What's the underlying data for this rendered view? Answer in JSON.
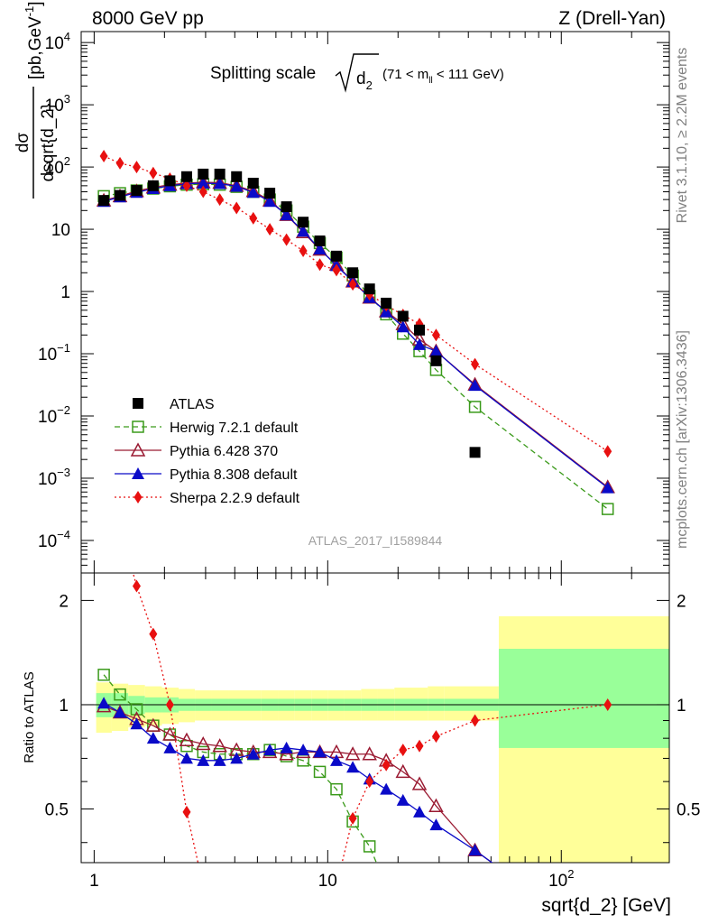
{
  "header": {
    "left": "8000 GeV pp",
    "right": "Z (Drell-Yan)"
  },
  "side_labels": {
    "rivet": "Rivet 3.1.10, ≥ 2.2M events",
    "mcplots": "mcplots.cern.ch [arXiv:1306.3436]"
  },
  "main_title": {
    "prefix": "Splitting scale",
    "var": "d",
    "var_sub": "2",
    "range_open": "(71 < m",
    "range_sub": "ll",
    "range_close": " < 111 GeV)"
  },
  "analysis_id": "ATLAS_2017_I1589844",
  "axes": {
    "ylabel_num": "dσ",
    "ylabel_den": "dsqrt{d_2}",
    "ylabel_unit": "[pb,GeV",
    "ylabel_unit_exp": "-1",
    "ylabel_unit_close": "]",
    "ratio_ylabel": "Ratio to ATLAS",
    "xlabel": "sqrt{d_2} [GeV]"
  },
  "main_ticks": [
    {
      "mant": "10",
      "exp": "4",
      "v": 10000
    },
    {
      "mant": "10",
      "exp": "3",
      "v": 1000
    },
    {
      "mant": "10",
      "exp": "2",
      "v": 100
    },
    {
      "mant": "10",
      "exp": "",
      "v": 10
    },
    {
      "mant": "1",
      "exp": "",
      "v": 1
    },
    {
      "mant": "10",
      "exp": "−1",
      "v": 0.1
    },
    {
      "mant": "10",
      "exp": "−2",
      "v": 0.01
    },
    {
      "mant": "10",
      "exp": "−3",
      "v": 0.001
    },
    {
      "mant": "10",
      "exp": "−4",
      "v": 0.0001
    }
  ],
  "ratio_ticks": [
    {
      "label": "2",
      "v": 2
    },
    {
      "label": "1",
      "v": 1
    },
    {
      "label": "0.5",
      "v": 0.5
    }
  ],
  "x_ticks": [
    {
      "mant": "1",
      "exp": "",
      "v": 1
    },
    {
      "mant": "10",
      "exp": "",
      "v": 10
    },
    {
      "mant": "10",
      "exp": "2",
      "v": 100
    }
  ],
  "chart_data": {
    "type": "scatter",
    "x_scale": "log",
    "y_scale": "log",
    "xlim": [
      0.88,
      290
    ],
    "ylim": [
      3e-05,
      15000
    ],
    "ratio_ylim": [
      0.35,
      2.4
    ],
    "legend_position": "lower-left",
    "x": [
      1.1,
      1.29,
      1.52,
      1.79,
      2.11,
      2.49,
      2.93,
      3.45,
      4.07,
      4.8,
      5.65,
      6.66,
      7.85,
      9.25,
      10.9,
      12.8,
      15.1,
      17.8,
      21.0,
      24.7,
      29.1,
      42.7,
      158
    ],
    "series": [
      {
        "name": "ATLAS",
        "color": "#000000",
        "marker": "filled-square",
        "line": "none",
        "values": [
          29,
          35,
          42,
          50,
          60,
          70,
          77,
          77,
          70,
          55,
          38,
          23,
          13,
          6.5,
          3.7,
          2.0,
          1.1,
          0.65,
          0.4,
          0.24,
          0.077,
          0.0026,
          null
        ],
        "ratio": [
          1.0,
          1.0,
          1.0,
          1.0,
          1.0,
          1.0,
          1.0,
          1.0,
          1.0,
          1.0,
          1.0,
          1.0,
          1.0,
          1.0,
          1.0,
          1.0,
          1.0,
          1.0,
          1.0,
          1.0,
          1.0,
          1.0,
          1.0
        ]
      },
      {
        "name": "Herwig 7.2.1 default",
        "color": "#3a9a1a",
        "marker": "open-square",
        "line": "dashed",
        "values": [
          34,
          38,
          42,
          45,
          49,
          52,
          53,
          52,
          48,
          40,
          30,
          20,
          11,
          6.0,
          3.5,
          1.8,
          0.85,
          0.43,
          0.21,
          0.11,
          0.055,
          0.014,
          0.00032
        ],
        "ratio": [
          1.22,
          1.07,
          0.97,
          0.87,
          0.82,
          0.76,
          0.73,
          0.72,
          0.72,
          0.72,
          0.74,
          0.71,
          0.69,
          0.64,
          0.57,
          0.46,
          0.39,
          0.3,
          0.3,
          0.3,
          0.3,
          0.3,
          0.3
        ]
      },
      {
        "name": "Pythia 6.428 370",
        "color": "#9a1a32",
        "marker": "open-triangle",
        "line": "solid",
        "values": [
          29,
          34,
          41,
          47,
          52,
          55,
          57,
          56,
          50,
          41,
          29,
          17,
          9.0,
          4.7,
          2.7,
          1.45,
          0.8,
          0.48,
          0.3,
          0.17,
          0.11,
          0.032,
          0.00072
        ],
        "ratio": [
          0.99,
          0.95,
          0.91,
          0.87,
          0.82,
          0.79,
          0.77,
          0.76,
          0.74,
          0.73,
          0.73,
          0.72,
          0.73,
          0.73,
          0.73,
          0.72,
          0.72,
          0.69,
          0.64,
          0.59,
          0.51,
          0.38,
          0.2
        ]
      },
      {
        "name": "Pythia 8.308 default",
        "color": "#0a0ac8",
        "marker": "filled-triangle",
        "line": "solid",
        "values": [
          28,
          33,
          39,
          45,
          50,
          54,
          55,
          54,
          49,
          39,
          28,
          17,
          9.3,
          4.8,
          2.6,
          1.45,
          0.8,
          0.47,
          0.27,
          0.14,
          0.11,
          0.031,
          0.0007
        ],
        "ratio": [
          1.01,
          0.95,
          0.88,
          0.8,
          0.75,
          0.7,
          0.69,
          0.69,
          0.7,
          0.72,
          0.74,
          0.75,
          0.74,
          0.73,
          0.69,
          0.66,
          0.61,
          0.57,
          0.53,
          0.49,
          0.45,
          0.38,
          0.2
        ]
      },
      {
        "name": "Sherpa 2.2.9 default",
        "color": "#e81010",
        "marker": "filled-diamond",
        "line": "dotted",
        "values": [
          150,
          115,
          100,
          80,
          65,
          50,
          40,
          30,
          22,
          15,
          10,
          6.8,
          4.5,
          2.7,
          2.2,
          1.3,
          0.9,
          0.6,
          0.42,
          0.3,
          0.2,
          0.068,
          0.0027
        ],
        "ratio": [
          5.2,
          3.3,
          2.2,
          1.6,
          1.0,
          0.49,
          0.3,
          0.3,
          0.3,
          0.3,
          0.3,
          0.3,
          0.3,
          0.3,
          0.3,
          0.47,
          0.6,
          0.67,
          0.74,
          0.76,
          0.81,
          0.9,
          1.0
        ]
      }
    ],
    "ratio_bands": {
      "edges": [
        1.02,
        1.19,
        1.4,
        1.65,
        1.95,
        2.3,
        2.7,
        3.18,
        3.75,
        4.42,
        5.2,
        6.14,
        7.23,
        8.52,
        10.0,
        11.8,
        13.9,
        16.4,
        19.3,
        22.8,
        26.8,
        31.6,
        54
      ],
      "inner": [
        [
          0.92,
          1.08
        ],
        [
          0.92,
          1.08
        ],
        [
          0.94,
          1.06
        ],
        [
          0.95,
          1.05
        ],
        [
          0.95,
          1.05
        ],
        [
          0.96,
          1.04
        ],
        [
          0.96,
          1.04
        ],
        [
          0.96,
          1.04
        ],
        [
          0.96,
          1.04
        ],
        [
          0.96,
          1.04
        ],
        [
          0.96,
          1.04
        ],
        [
          0.96,
          1.04
        ],
        [
          0.96,
          1.04
        ],
        [
          0.96,
          1.04
        ],
        [
          0.96,
          1.04
        ],
        [
          0.96,
          1.04
        ],
        [
          0.96,
          1.04
        ],
        [
          0.96,
          1.04
        ],
        [
          0.96,
          1.04
        ],
        [
          0.96,
          1.04
        ],
        [
          0.96,
          1.04
        ],
        [
          0.96,
          1.04
        ],
        [
          0.75,
          1.45
        ]
      ],
      "outer": [
        [
          0.83,
          1.16
        ],
        [
          0.84,
          1.15
        ],
        [
          0.86,
          1.14
        ],
        [
          0.87,
          1.13
        ],
        [
          0.88,
          1.12
        ],
        [
          0.89,
          1.11
        ],
        [
          0.9,
          1.1
        ],
        [
          0.9,
          1.1
        ],
        [
          0.9,
          1.1
        ],
        [
          0.9,
          1.1
        ],
        [
          0.9,
          1.1
        ],
        [
          0.9,
          1.1
        ],
        [
          0.9,
          1.1
        ],
        [
          0.9,
          1.1
        ],
        [
          0.9,
          1.1
        ],
        [
          0.9,
          1.1
        ],
        [
          0.9,
          1.11
        ],
        [
          0.9,
          1.11
        ],
        [
          0.9,
          1.12
        ],
        [
          0.9,
          1.12
        ],
        [
          0.9,
          1.13
        ],
        [
          0.9,
          1.13
        ],
        [
          0.35,
          1.8
        ]
      ]
    }
  }
}
